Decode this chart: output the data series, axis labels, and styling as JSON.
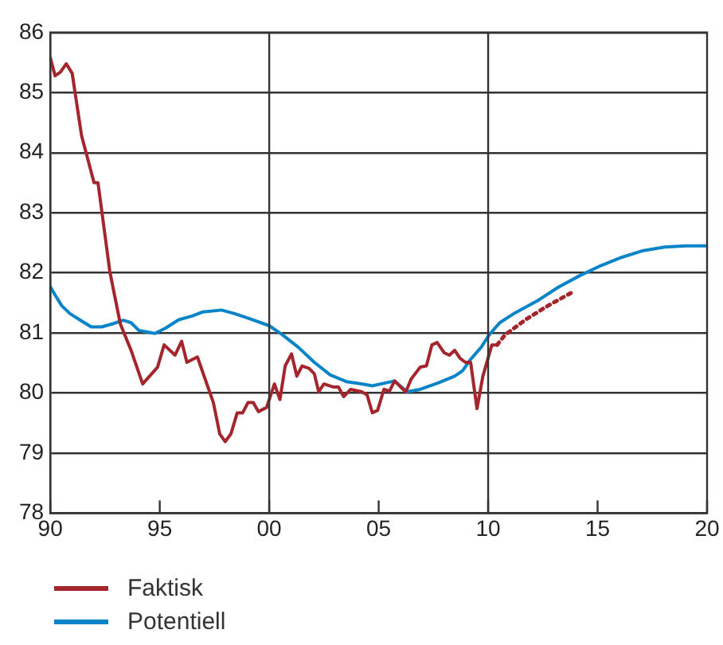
{
  "chart_data": {
    "type": "line",
    "xlim": [
      1990,
      2020
    ],
    "xticks": [
      {
        "value": 1990,
        "label": "90"
      },
      {
        "value": 1995,
        "label": "95"
      },
      {
        "value": 2000,
        "label": "00"
      },
      {
        "value": 2005,
        "label": "05"
      },
      {
        "value": 2010,
        "label": "10"
      },
      {
        "value": 2015,
        "label": "15"
      },
      {
        "value": 2020,
        "label": "20"
      }
    ],
    "ylim": [
      78,
      86
    ],
    "yticks": [
      78,
      79,
      80,
      81,
      82,
      83,
      84,
      85,
      86
    ],
    "grid": "y",
    "legend": "bottom",
    "marker": "none",
    "ref_lines": [
      {
        "axis": "x",
        "value": 2000
      },
      {
        "axis": "x",
        "value": 2010
      }
    ],
    "series": [
      {
        "name": "Faktisk",
        "color": "#a4262c",
        "line_style": "solid",
        "x": [
          1990,
          1990.22,
          1990.46,
          1990.73,
          1991,
          1991.43,
          1992,
          1992.18,
          1992.72,
          1993.2,
          1993.69,
          1994.22,
          1994.9,
          1995.2,
          1995.7,
          1996,
          1996.24,
          1996.72,
          1997.45,
          1997.74,
          1997.99,
          1998.25,
          1998.54,
          1998.79,
          1999.03,
          1999.27,
          1999.51,
          1999.88,
          2000.24,
          2000.49,
          2000.73,
          2001.02,
          2001.26,
          2001.5,
          2001.82,
          2002.06,
          2002.26,
          2002.5,
          2002.91,
          2003.16,
          2003.4,
          2003.72,
          2004.22,
          2004.47,
          2004.71,
          2004.95,
          2005.24,
          2005.49,
          2005.73,
          2006,
          2006.24,
          2006.48,
          2006.9,
          2007.18,
          2007.43,
          2007.67,
          2007.99,
          2008.23,
          2008.47,
          2008.71,
          2008.96,
          2009.2,
          2009.49,
          2009.76,
          2010.17,
          2010.41
        ],
        "values": [
          85.58,
          85.28,
          85.34,
          85.48,
          85.32,
          84.28,
          83.5,
          83.5,
          82.02,
          81.15,
          80.71,
          80.15,
          80.43,
          80.8,
          80.63,
          80.86,
          80.51,
          80.6,
          79.84,
          79.32,
          79.19,
          79.32,
          79.67,
          79.67,
          79.84,
          79.84,
          79.69,
          79.76,
          80.15,
          79.89,
          80.45,
          80.65,
          80.28,
          80.45,
          80.41,
          80.32,
          80.02,
          80.15,
          80.1,
          80.1,
          79.94,
          80.06,
          80.02,
          79.97,
          79.67,
          79.71,
          80.06,
          80.03,
          80.2,
          80.1,
          80.02,
          80.23,
          80.43,
          80.45,
          80.8,
          80.84,
          80.67,
          80.63,
          80.71,
          80.58,
          80.51,
          80.51,
          79.74,
          80.28,
          80.8,
          80.8
        ]
      },
      {
        "color": "#a4262c",
        "line_style": "dotted",
        "x": [
          2010.41,
          2010.78,
          2011.75,
          2012.72,
          2013.81
        ],
        "values": [
          80.8,
          80.97,
          81.23,
          81.45,
          81.67
        ]
      },
      {
        "name": "Potentiell",
        "color": "#0a84c8",
        "line_style": "solid",
        "x": [
          1990,
          1990.22,
          1990.53,
          1990.9,
          1991.38,
          1991.87,
          1992.35,
          1992.84,
          1993.33,
          1993.69,
          1994.05,
          1994.78,
          1995.27,
          1995.87,
          1996.48,
          1996.97,
          1997.82,
          1998.42,
          1999.15,
          2000,
          2000.6,
          2001.33,
          2002.06,
          2002.79,
          2003.52,
          2004.25,
          2004.71,
          2005.73,
          2006.29,
          2006.9,
          2007.74,
          2008.47,
          2008.83,
          2009.2,
          2009.68,
          2010.05,
          2010.53,
          2011.26,
          2012.23,
          2013.2,
          2014.17,
          2015.15,
          2016.12,
          2017.09,
          2018.06,
          2019.03,
          2020
        ],
        "values": [
          81.77,
          81.63,
          81.45,
          81.32,
          81.21,
          81.1,
          81.1,
          81.15,
          81.21,
          81.17,
          81.04,
          80.99,
          81.08,
          81.22,
          81.28,
          81.35,
          81.38,
          81.32,
          81.23,
          81.12,
          80.97,
          80.76,
          80.51,
          80.3,
          80.19,
          80.15,
          80.12,
          80.2,
          80.02,
          80.06,
          80.17,
          80.28,
          80.37,
          80.56,
          80.76,
          80.97,
          81.17,
          81.34,
          81.53,
          81.76,
          81.95,
          82.12,
          82.26,
          82.37,
          82.43,
          82.45,
          82.45
        ]
      }
    ]
  }
}
